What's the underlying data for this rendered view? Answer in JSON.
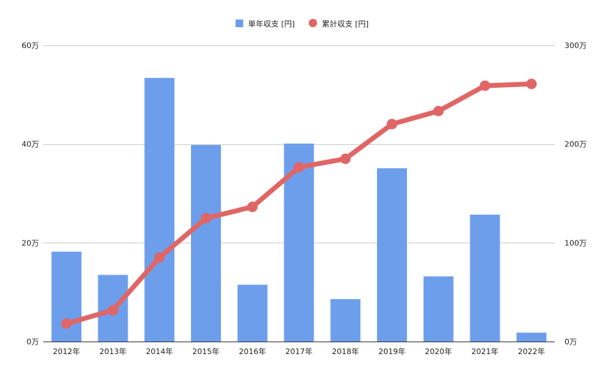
{
  "chart_data": {
    "type": "bar",
    "categories": [
      "2012年",
      "2013年",
      "2014年",
      "2015年",
      "2016年",
      "2017年",
      "2018年",
      "2019年",
      "2020年",
      "2021年",
      "2022年"
    ],
    "series": [
      {
        "name": "単年収支 [円]",
        "type": "bar",
        "axis": "left",
        "color": "#6d9eeb",
        "values": [
          182000,
          135000,
          534000,
          398000,
          115000,
          401000,
          86000,
          351000,
          132000,
          257000,
          18000
        ]
      },
      {
        "name": "累計収支 [円]",
        "type": "line",
        "axis": "right",
        "color": "#e06666",
        "values": [
          182000,
          317000,
          851000,
          1249000,
          1364000,
          1765000,
          1851000,
          2202000,
          2334000,
          2591000,
          2609000
        ]
      }
    ],
    "left_axis": {
      "ylim": [
        0,
        600000
      ],
      "ticks": [
        0,
        200000,
        400000,
        600000
      ],
      "tick_labels": [
        "0万",
        "20万",
        "40万",
        "60万"
      ]
    },
    "right_axis": {
      "ylim": [
        0,
        3000000
      ],
      "ticks": [
        0,
        1000000,
        2000000,
        3000000
      ],
      "tick_labels": [
        "0万",
        "100万",
        "200万",
        "300万"
      ]
    },
    "legend_position": "top-center",
    "grid": true
  }
}
